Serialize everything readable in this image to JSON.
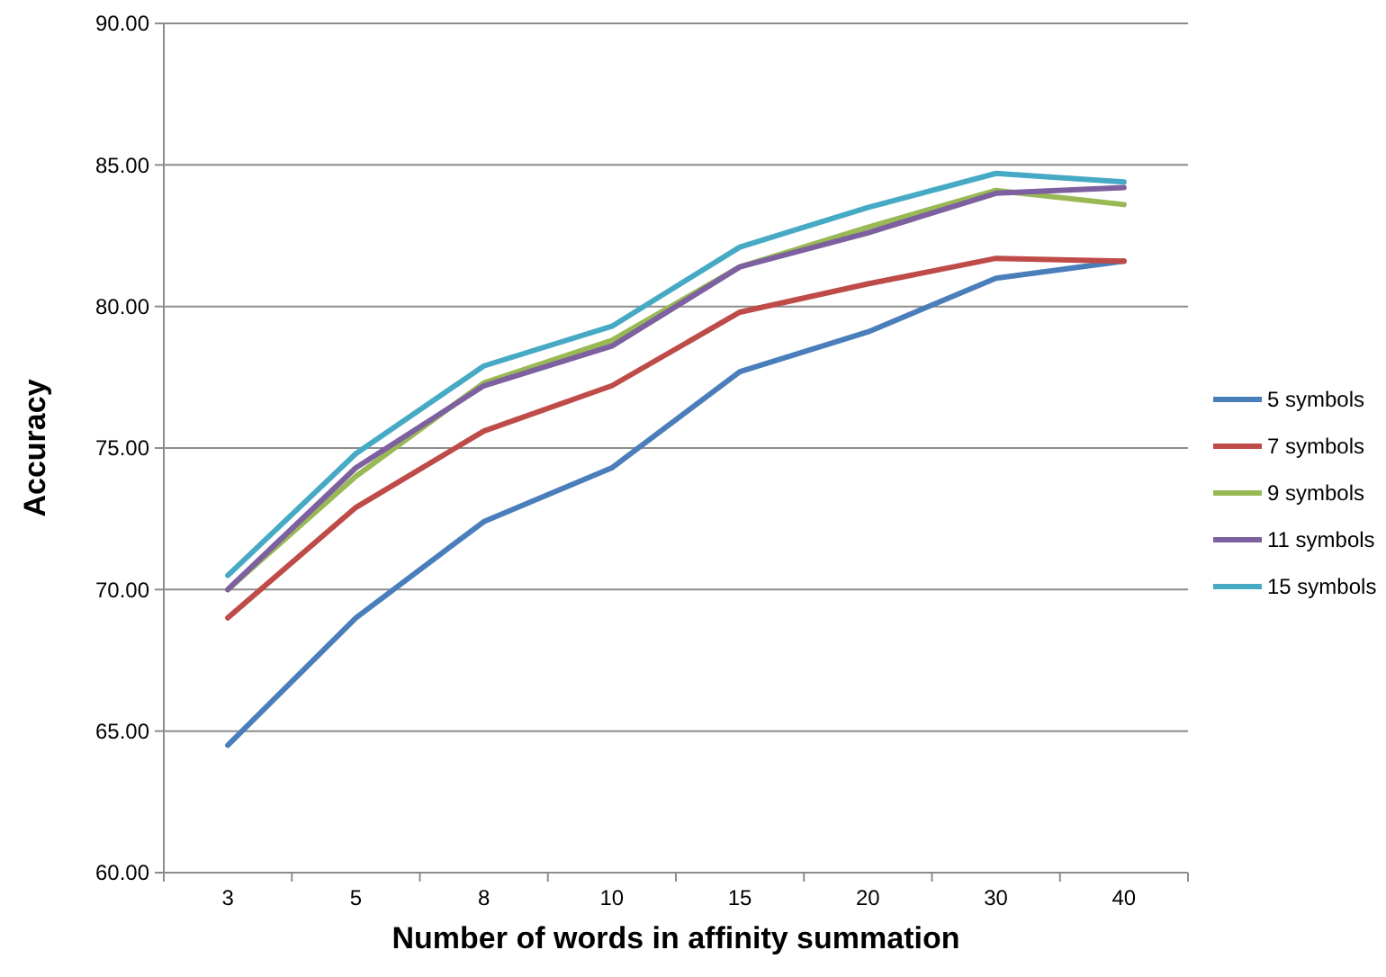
{
  "chart_data": {
    "type": "line",
    "xlabel": "Number of words in affinity summation",
    "ylabel": "Accuracy",
    "categories": [
      "3",
      "5",
      "8",
      "10",
      "15",
      "20",
      "30",
      "40"
    ],
    "series": [
      {
        "name": "5 symbols",
        "color": "#4a7ebb",
        "values": [
          64.5,
          69.0,
          72.4,
          74.3,
          77.7,
          79.1,
          81.0,
          81.6
        ]
      },
      {
        "name": "7 symbols",
        "color": "#be4b48",
        "values": [
          69.0,
          72.9,
          75.6,
          77.2,
          79.8,
          80.8,
          81.7,
          81.6
        ]
      },
      {
        "name": "9 symbols",
        "color": "#98b954",
        "values": [
          70.0,
          74.0,
          77.3,
          78.8,
          81.4,
          82.8,
          84.1,
          83.6
        ]
      },
      {
        "name": "11 symbols",
        "color": "#7d60a0",
        "values": [
          70.0,
          74.3,
          77.2,
          78.6,
          81.4,
          82.6,
          84.0,
          84.2
        ]
      },
      {
        "name": "15 symbols",
        "color": "#46aac5",
        "values": [
          70.5,
          74.8,
          77.9,
          79.3,
          82.1,
          83.5,
          84.7,
          84.4
        ]
      }
    ],
    "ylim": [
      60,
      90
    ],
    "yticks": [
      {
        "value": 60,
        "label": "60.00"
      },
      {
        "value": 65,
        "label": "65.00"
      },
      {
        "value": 70,
        "label": "70.00"
      },
      {
        "value": 75,
        "label": "75.00"
      },
      {
        "value": 80,
        "label": "80.00"
      },
      {
        "value": 85,
        "label": "85.00"
      },
      {
        "value": 90,
        "label": "90.00"
      }
    ],
    "grid": "y",
    "legend": "right",
    "marker": "none",
    "line_style": "solid"
  }
}
